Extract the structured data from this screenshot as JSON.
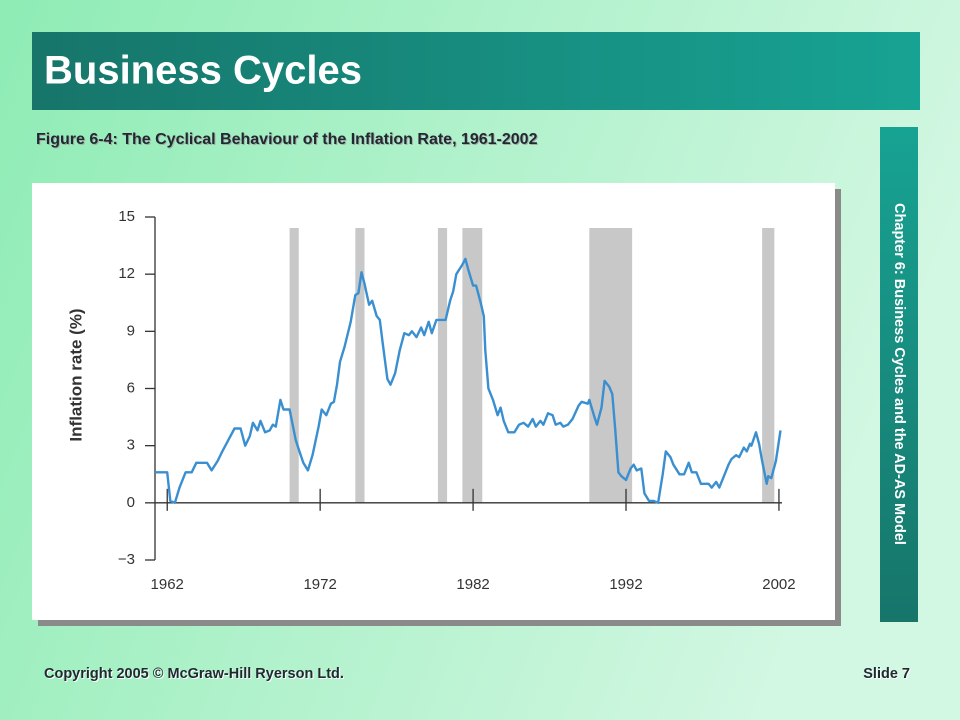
{
  "slide": {
    "title": "Business Cycles",
    "figure_caption": "Figure 6-4: The Cyclical Behaviour of the Inflation Rate, 1961-2002",
    "side_label": "Chapter 6: Business Cycles and the AD-AS Model",
    "copyright": "Copyright 2005 © McGraw-Hill Ryerson Ltd.",
    "slide_number": "Slide 7"
  },
  "chart_data": {
    "type": "line",
    "ylabel": "Inflation rate (%)",
    "color": "#3a8fd0",
    "recession_color": "#c8c8c8",
    "xlim": [
      1961.2,
      2002.2
    ],
    "xticks": [
      1962,
      1972,
      1982,
      1992,
      2002
    ],
    "ylim": [
      -3,
      15
    ],
    "yticks": [
      {
        "value": -3,
        "label": "−3"
      },
      0,
      3,
      6,
      9,
      12,
      15
    ],
    "recessions": [
      [
        1970.0,
        1970.6
      ],
      [
        1974.3,
        1974.9
      ],
      [
        1979.7,
        1980.3
      ],
      [
        1981.3,
        1982.6
      ],
      [
        1989.6,
        1992.4
      ],
      [
        2000.9,
        2001.7
      ]
    ],
    "x": [
      1961.2,
      1961.5,
      1962.0,
      1962.2,
      1962.5,
      1962.8,
      1963.2,
      1963.6,
      1963.9,
      1964.6,
      1964.9,
      1965.3,
      1965.6,
      1966.0,
      1966.4,
      1966.8,
      1967.1,
      1967.4,
      1967.6,
      1967.9,
      1968.1,
      1968.4,
      1968.7,
      1968.9,
      1969.1,
      1969.4,
      1969.6,
      1970.0,
      1970.4,
      1970.6,
      1970.9,
      1971.2,
      1971.5,
      1971.9,
      1972.1,
      1972.4,
      1972.7,
      1972.9,
      1973.1,
      1973.3,
      1973.6,
      1974.0,
      1974.3,
      1974.5,
      1974.7,
      1974.9,
      1975.2,
      1975.4,
      1975.7,
      1975.9,
      1976.1,
      1976.4,
      1976.6,
      1976.9,
      1977.2,
      1977.5,
      1977.8,
      1978.0,
      1978.3,
      1978.6,
      1978.8,
      1979.1,
      1979.3,
      1979.6,
      1980.0,
      1980.2,
      1980.5,
      1980.7,
      1980.9,
      1981.3,
      1981.5,
      1981.7,
      1982.0,
      1982.2,
      1982.5,
      1982.7,
      1982.8,
      1983.0,
      1983.3,
      1983.6,
      1983.8,
      1984.0,
      1984.3,
      1984.7,
      1985.0,
      1985.3,
      1985.6,
      1985.9,
      1986.1,
      1986.4,
      1986.6,
      1986.9,
      1987.2,
      1987.4,
      1987.7,
      1987.9,
      1988.2,
      1988.5,
      1988.9,
      1989.1,
      1989.5,
      1989.6,
      1989.9,
      1990.1,
      1990.4,
      1990.6,
      1990.9,
      1991.1,
      1991.3,
      1991.5,
      1991.7,
      1992.0,
      1992.3,
      1992.5,
      1992.7,
      1993.0,
      1993.2,
      1993.5,
      1993.8,
      1994.1,
      1994.4,
      1994.6,
      1994.9,
      1995.1,
      1995.5,
      1995.8,
      1996.1,
      1996.3,
      1996.6,
      1996.9,
      1997.2,
      1997.4,
      1997.6,
      1997.9,
      1998.1,
      1998.4,
      1998.7,
      1998.9,
      1999.2,
      1999.4,
      1999.7,
      1999.9,
      2000.1,
      2000.2,
      2000.5,
      2000.7,
      2000.9,
      2001.2,
      2001.3,
      2001.5,
      2001.8,
      2002.1
    ],
    "values": [
      1.6,
      1.6,
      1.6,
      0.1,
      0,
      0.8,
      1.6,
      1.6,
      2.1,
      2.1,
      1.7,
      2.2,
      2.7,
      3.3,
      3.9,
      3.9,
      3.0,
      3.5,
      4.2,
      3.8,
      4.3,
      3.7,
      3.8,
      4.1,
      4.0,
      5.4,
      4.9,
      4.9,
      3.3,
      2.8,
      2.1,
      1.7,
      2.5,
      4.0,
      4.9,
      4.6,
      5.2,
      5.3,
      6.2,
      7.4,
      8.2,
      9.5,
      10.9,
      11.0,
      12.1,
      11.5,
      10.4,
      10.6,
      9.8,
      9.6,
      8.3,
      6.5,
      6.2,
      6.8,
      8.0,
      8.9,
      8.8,
      9.0,
      8.7,
      9.2,
      8.8,
      9.5,
      8.9,
      9.6,
      9.6,
      9.6,
      10.6,
      11.1,
      12.0,
      12.5,
      12.8,
      12.2,
      11.4,
      11.4,
      10.5,
      9.8,
      8.0,
      6.0,
      5.4,
      4.6,
      5.0,
      4.3,
      3.7,
      3.7,
      4.1,
      4.2,
      4.0,
      4.4,
      4.0,
      4.3,
      4.1,
      4.7,
      4.6,
      4.1,
      4.2,
      4.0,
      4.1,
      4.4,
      5.1,
      5.3,
      5.2,
      5.4,
      4.6,
      4.1,
      5.0,
      6.4,
      6.1,
      5.7,
      3.8,
      1.6,
      1.4,
      1.2,
      1.8,
      2.0,
      1.7,
      1.8,
      0.5,
      0.1,
      0.1,
      0,
      1.5,
      2.7,
      2.4,
      2.0,
      1.5,
      1.5,
      2.1,
      1.6,
      1.6,
      1.0,
      1.0,
      1.0,
      0.8,
      1.1,
      0.8,
      1.4,
      2.0,
      2.3,
      2.5,
      2.4,
      2.9,
      2.7,
      3.1,
      3.0,
      3.7,
      3.1,
      2.2,
      1.0,
      1.4,
      1.3,
      2.2,
      3.8
    ]
  }
}
